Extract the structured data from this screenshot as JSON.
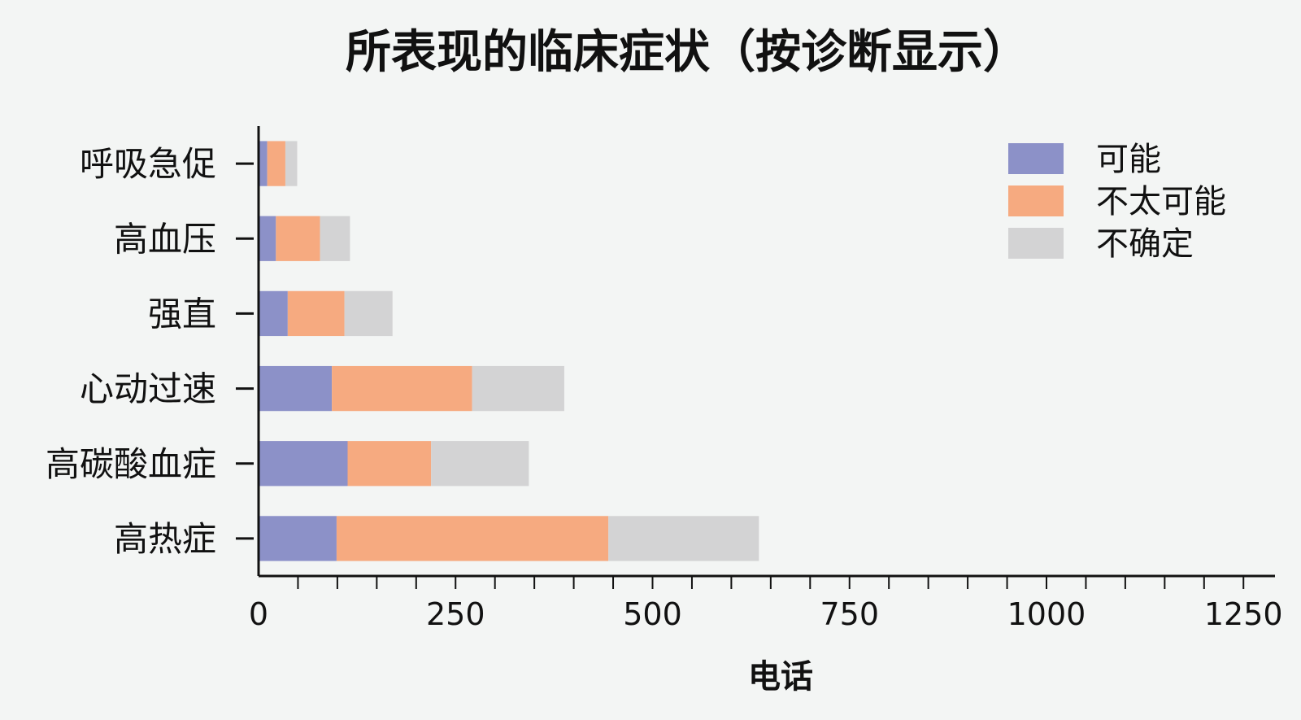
{
  "chart_data": {
    "type": "bar",
    "orientation": "horizontal",
    "stacked": true,
    "title": "所表现的临床症状（按诊断显示）",
    "xlabel": "电话",
    "ylabel": "",
    "xlim": [
      0,
      1290
    ],
    "x_ticks": [
      0,
      250,
      500,
      750,
      1000,
      1250
    ],
    "x_minor_tick_step": 50,
    "grid": false,
    "legend_position": "top-right",
    "categories": [
      "呼吸急促",
      "高血压",
      "强直",
      "心动过速",
      "高碳酸血症",
      "高热症"
    ],
    "series": [
      {
        "name": "可能",
        "color": "#8c91c8",
        "values": [
          11,
          22,
          37,
          93,
          113,
          99
        ]
      },
      {
        "name": "不太可能",
        "color": "#f6aa80",
        "values": [
          23,
          56,
          72,
          178,
          106,
          345
        ]
      },
      {
        "name": "不确定",
        "color": "#d3d3d4",
        "values": [
          15,
          38,
          61,
          117,
          124,
          191
        ]
      }
    ]
  }
}
